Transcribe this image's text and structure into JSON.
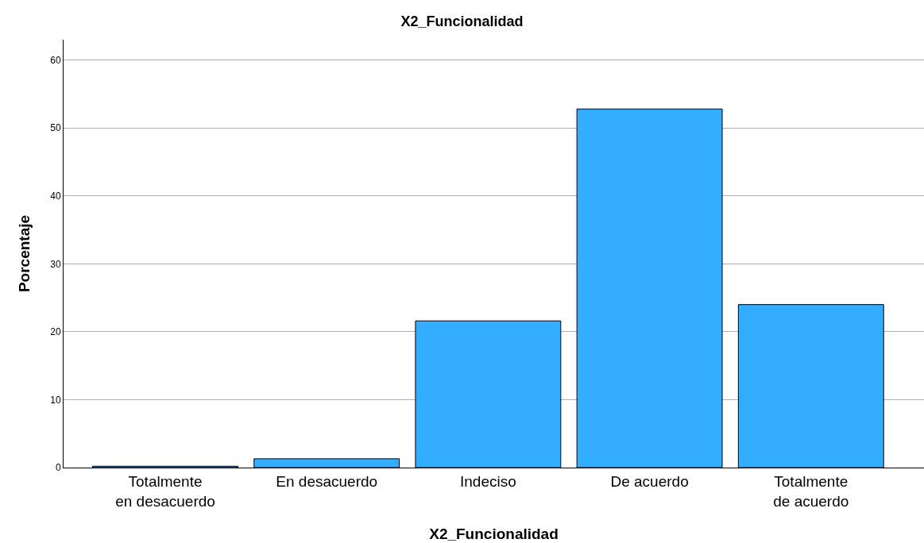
{
  "chart_data": {
    "type": "bar",
    "title": "X2_Funcionalidad",
    "xlabel": "X2_Funcionalidad",
    "ylabel": "Porcentaje",
    "categories": [
      "Totalmente en desacuerdo",
      "En desacuerdo",
      "Indeciso",
      "De acuerdo",
      "Totalmente de acuerdo"
    ],
    "values": [
      0.2,
      1.3,
      21.6,
      52.8,
      24.0
    ],
    "color": "#33adff",
    "ylim": [
      0,
      63
    ],
    "yticks": [
      0,
      10,
      20,
      30,
      40,
      50,
      60
    ],
    "grid": "y"
  }
}
